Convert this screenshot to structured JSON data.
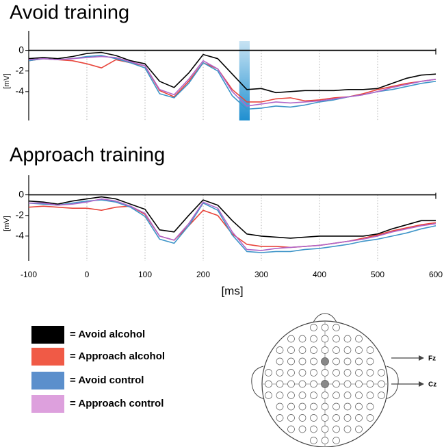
{
  "chart_data": [
    {
      "type": "line",
      "title": "Avoid training",
      "ylabel": "[mV]",
      "x": [
        -100,
        -75,
        -50,
        -25,
        0,
        25,
        50,
        75,
        100,
        125,
        150,
        175,
        200,
        225,
        250,
        275,
        300,
        325,
        350,
        375,
        400,
        425,
        450,
        475,
        500,
        525,
        550,
        575,
        600
      ],
      "xlim": [
        -100,
        600
      ],
      "xticks": [
        -100,
        0,
        100,
        200,
        300,
        400,
        500,
        600
      ],
      "show_xtick_labels": false,
      "ylim": [
        -6.8,
        1.9
      ],
      "yticks": [
        0,
        -2,
        -4
      ],
      "highlight": {
        "x": [
          262,
          280
        ],
        "color": "#1f8fd0"
      },
      "series": [
        {
          "name": "Avoid alcohol",
          "color": "#000000",
          "values": [
            -0.8,
            -0.7,
            -0.8,
            -0.6,
            -0.3,
            -0.2,
            -0.5,
            -1.0,
            -1.3,
            -3.0,
            -3.6,
            -2.2,
            -0.4,
            -0.8,
            -2.3,
            -3.8,
            -3.7,
            -4.1,
            -4.0,
            -3.9,
            -3.9,
            -3.9,
            -3.8,
            -3.8,
            -3.7,
            -3.2,
            -2.7,
            -2.4,
            -2.3
          ]
        },
        {
          "name": "Approach alcohol",
          "color": "#e8443a",
          "values": [
            -1.0,
            -0.8,
            -0.9,
            -1.0,
            -1.3,
            -1.7,
            -0.9,
            -1.2,
            -1.5,
            -3.9,
            -4.5,
            -3.0,
            -1.2,
            -1.8,
            -3.8,
            -5.0,
            -5.0,
            -4.7,
            -4.6,
            -4.9,
            -4.8,
            -4.6,
            -4.5,
            -4.2,
            -3.8,
            -3.5,
            -3.2,
            -3.0,
            -2.8
          ]
        },
        {
          "name": "Avoid control",
          "color": "#3d94c8",
          "values": [
            -1.0,
            -0.8,
            -0.9,
            -0.8,
            -0.6,
            -0.5,
            -0.8,
            -1.2,
            -1.7,
            -4.2,
            -4.6,
            -3.2,
            -1.2,
            -2.0,
            -4.4,
            -5.7,
            -5.6,
            -5.4,
            -5.5,
            -5.3,
            -5.0,
            -4.8,
            -4.5,
            -4.3,
            -4.0,
            -3.8,
            -3.5,
            -3.2,
            -3.0
          ]
        },
        {
          "name": "Approach control",
          "color": "#b065c8",
          "values": [
            -0.9,
            -0.8,
            -0.9,
            -0.8,
            -0.7,
            -0.6,
            -0.7,
            -1.1,
            -1.5,
            -3.8,
            -4.3,
            -2.8,
            -1.0,
            -1.8,
            -4.0,
            -5.4,
            -5.2,
            -5.0,
            -5.1,
            -5.0,
            -4.9,
            -4.7,
            -4.5,
            -4.3,
            -4.0,
            -3.6,
            -3.3,
            -3.0,
            -2.8
          ]
        }
      ]
    },
    {
      "type": "line",
      "title": "Approach training",
      "ylabel": "[mV]",
      "xlabel": "[ms]",
      "x": [
        -100,
        -75,
        -50,
        -25,
        0,
        25,
        50,
        75,
        100,
        125,
        150,
        175,
        200,
        225,
        250,
        275,
        300,
        325,
        350,
        375,
        400,
        425,
        450,
        475,
        500,
        525,
        550,
        575,
        600
      ],
      "xlim": [
        -100,
        600
      ],
      "xticks": [
        -100,
        0,
        100,
        200,
        300,
        400,
        500,
        600
      ],
      "show_xtick_labels": true,
      "ylim": [
        -6.4,
        1.9
      ],
      "yticks": [
        0,
        -2,
        -4
      ],
      "series": [
        {
          "name": "Avoid alcohol",
          "color": "#000000",
          "values": [
            -0.6,
            -0.7,
            -0.9,
            -0.6,
            -0.4,
            -0.2,
            -0.4,
            -0.9,
            -1.4,
            -3.4,
            -3.6,
            -2.0,
            -0.5,
            -1.0,
            -2.5,
            -3.8,
            -4.0,
            -4.1,
            -4.2,
            -4.1,
            -4.0,
            -4.0,
            -4.0,
            -4.0,
            -3.8,
            -3.3,
            -2.9,
            -2.5,
            -2.5
          ]
        },
        {
          "name": "Approach alcohol",
          "color": "#e8443a",
          "values": [
            -1.2,
            -1.1,
            -1.2,
            -1.3,
            -1.3,
            -1.5,
            -1.2,
            -1.1,
            -1.9,
            -4.0,
            -4.4,
            -3.0,
            -1.5,
            -2.0,
            -3.8,
            -4.8,
            -5.0,
            -5.0,
            -5.1,
            -5.0,
            -4.9,
            -4.7,
            -4.5,
            -4.2,
            -3.9,
            -3.5,
            -3.2,
            -2.9,
            -2.7
          ]
        },
        {
          "name": "Avoid control",
          "color": "#3d94c8",
          "values": [
            -0.8,
            -0.9,
            -1.0,
            -0.8,
            -0.6,
            -0.5,
            -0.7,
            -1.2,
            -2.1,
            -4.3,
            -4.7,
            -3.0,
            -0.8,
            -1.5,
            -3.9,
            -5.5,
            -5.6,
            -5.5,
            -5.5,
            -5.3,
            -5.2,
            -5.0,
            -4.8,
            -4.5,
            -4.3,
            -4.0,
            -3.7,
            -3.3,
            -3.0
          ]
        },
        {
          "name": "Approach control",
          "color": "#b065c8",
          "values": [
            -0.8,
            -0.8,
            -1.0,
            -0.9,
            -0.7,
            -0.4,
            -0.6,
            -1.1,
            -1.8,
            -4.0,
            -4.4,
            -2.8,
            -0.7,
            -1.3,
            -3.6,
            -5.3,
            -5.4,
            -5.2,
            -5.1,
            -5.0,
            -4.9,
            -4.7,
            -4.5,
            -4.3,
            -4.0,
            -3.6,
            -3.3,
            -3.0,
            -2.8
          ]
        }
      ]
    }
  ],
  "legend": {
    "items": [
      {
        "label": "= Avoid alcohol",
        "color": "#000000"
      },
      {
        "label": "= Approach alcohol",
        "color": "#f05a46"
      },
      {
        "label": "= Avoid control",
        "color": "#5b8fcc"
      },
      {
        "label": "= Approach control",
        "color": "#dda0dd"
      }
    ]
  },
  "electrode_map": {
    "labels": [
      "Fz",
      "Cz"
    ]
  }
}
